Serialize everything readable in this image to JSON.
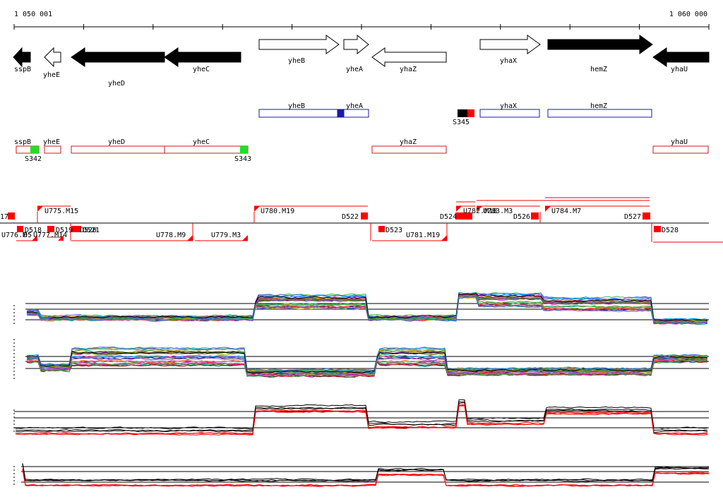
{
  "ruler": {
    "start_label": "1 050 001",
    "end_label": "1 060 000"
  },
  "colors": {
    "gene_fill": "#000000",
    "gene_outline": "#000000",
    "operon_sense": "#1a1aa8",
    "operon_antisense": "#cc1a1a",
    "marker_red": "#ff0000",
    "marker_green": "#22dd22",
    "marker_blue": "#1a1aa8",
    "marker_black": "#000000",
    "trace_black": "#000000",
    "trace_red": "#ff0000"
  },
  "genes": [
    {
      "name": "sspB",
      "strand": "-",
      "filled": true
    },
    {
      "name": "yheE",
      "strand": "-",
      "filled": false
    },
    {
      "name": "yheD",
      "strand": "-",
      "filled": true
    },
    {
      "name": "yheC",
      "strand": "-",
      "filled": true
    },
    {
      "name": "yheB",
      "strand": "+",
      "filled": false
    },
    {
      "name": "yheA",
      "strand": "+",
      "filled": false
    },
    {
      "name": "yhaZ",
      "strand": "-",
      "filled": false
    },
    {
      "name": "yhaX",
      "strand": "+",
      "filled": false
    },
    {
      "name": "hemZ",
      "strand": "+",
      "filled": true
    },
    {
      "name": "yhaU",
      "strand": "-",
      "filled": true
    }
  ],
  "operons_sense": [
    {
      "labels": [
        "yheB",
        "yheA"
      ]
    },
    {
      "labels": [
        "yhaX"
      ]
    },
    {
      "labels": [
        "hemZ"
      ]
    }
  ],
  "operons_antisense": [
    {
      "labels": [
        "sspB"
      ]
    },
    {
      "labels": [
        "yheE"
      ]
    },
    {
      "labels": [
        "yheD",
        "yheC"
      ]
    },
    {
      "labels": [
        "yhaZ"
      ]
    },
    {
      "labels": [
        "yhaU"
      ]
    }
  ],
  "sites": [
    "S342",
    "S343",
    "S345"
  ],
  "segments_upper": [
    "17",
    "U775.M15",
    "U780.M19",
    "D522",
    "D524",
    "U782.M18",
    "U783.M3",
    "D526",
    "U784.M7",
    "D527"
  ],
  "segments_lower": [
    "U776.M",
    "D518",
    "D5",
    "U777.M14",
    "D519",
    "D520",
    "D521",
    "U778.M9",
    "U779.M3",
    "D523",
    "U781.M19",
    "D528"
  ]
}
